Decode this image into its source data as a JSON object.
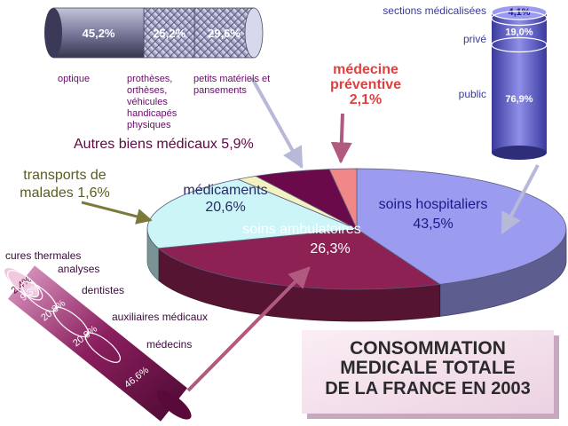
{
  "chart_data": [
    {
      "type": "pie",
      "categories": [
        "soins hospitaliers",
        "soins ambulatoires",
        "médicaments",
        "transports de malades",
        "Autres biens médicaux",
        "médecine préventive"
      ],
      "values": [
        43.5,
        26.3,
        20.6,
        1.6,
        5.9,
        2.1
      ],
      "labels": [
        "soins hospitaliers\n43,5%",
        "soins ambulatoires\n26,3%",
        "médicaments\n20,6%",
        "transports de\nmalades 1,6%",
        "Autres biens médicaux 5,9%",
        "médecine\npréventive\n2,1%"
      ],
      "colors": [
        "#9b9bf0",
        "#8e2154",
        "#ccf5f8",
        "#f4f2c0",
        "#6a0a4a",
        "#f08888"
      ]
    },
    {
      "type": "bar",
      "categories": [
        "optique",
        "prothèses, orthèses, véhicules handicapés physiques",
        "petits matériels et pansements"
      ],
      "values": [
        45.2,
        25.2,
        29.6
      ],
      "value_labels": [
        "45,2%",
        "25,2%",
        "29,6%"
      ],
      "category_labels": [
        "optique",
        "prothèses,\northèses,\nvéhicules\nhandicapés\nphysiques",
        "petits matériels et\npansements"
      ]
    },
    {
      "type": "bar",
      "categories": [
        "sections médicalisées",
        "privé",
        "public"
      ],
      "values": [
        4.1,
        19.0,
        76.9
      ],
      "value_labels": [
        "4,1%",
        "19,0%",
        "76,9%"
      ]
    },
    {
      "type": "bar",
      "categories": [
        "cures thermales",
        "analyses",
        "dentistes",
        "auxiliaires médicaux",
        "médecins"
      ],
      "values": [
        2.4,
        9.3,
        20.8,
        20.9,
        46.6
      ],
      "value_labels": [
        "2,4%",
        "9,3%",
        "20,8%",
        "20,9%",
        "46,6%"
      ]
    }
  ],
  "title": [
    "CONSOMMATION",
    "MEDICALE TOTALE",
    "DE LA FRANCE EN 2003"
  ]
}
